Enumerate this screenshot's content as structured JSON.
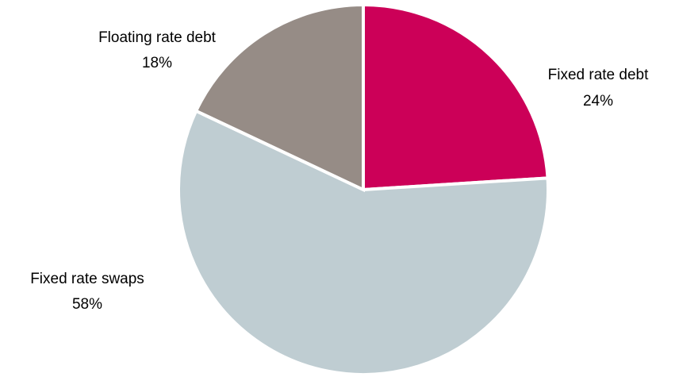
{
  "chart_data": {
    "type": "pie",
    "slices": [
      {
        "label": "Fixed rate debt",
        "value": 24,
        "value_label": "24%",
        "color": "#cc0058"
      },
      {
        "label": "Fixed rate swaps",
        "value": 58,
        "value_label": "58%",
        "color": "#bfcdd2"
      },
      {
        "label": "Floating rate debt",
        "value": 18,
        "value_label": "18%",
        "color": "#968c86"
      }
    ],
    "start_angle_deg": 0,
    "direction": "clockwise",
    "separator_color": "#ffffff"
  }
}
